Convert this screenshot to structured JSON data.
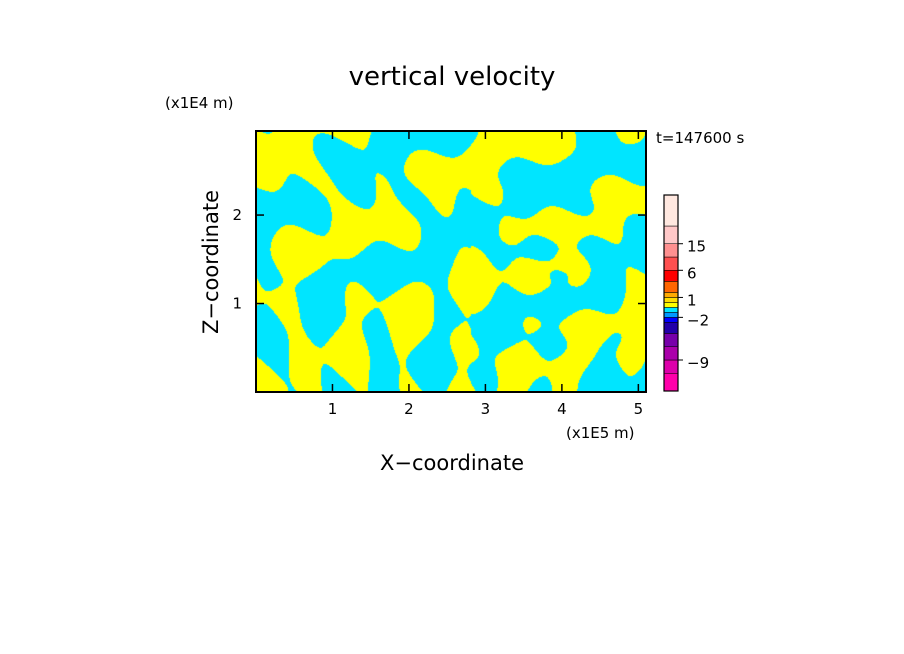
{
  "chart_data": {
    "type": "heatmap",
    "title": "vertical velocity",
    "xlabel": "X−coordinate",
    "ylabel": "Z−coordinate",
    "x_unit": "(x1E5 m)",
    "y_unit": "(x1E4 m)",
    "time_label": "t=147600 s",
    "xlim": [
      0,
      5.1
    ],
    "ylim": [
      0,
      2.95
    ],
    "x_ticks": [
      1,
      2,
      3,
      4,
      5
    ],
    "y_ticks": [
      1,
      2
    ],
    "field_colors": {
      "positive": "#ffff00",
      "negative": "#00e5ff"
    },
    "colorbar": {
      "levels": [
        {
          "color": "#ff00aa"
        },
        {
          "color": "#dd00aa"
        },
        {
          "color": "#aa00aa"
        },
        {
          "color": "#7700aa"
        },
        {
          "color": "#2200aa"
        },
        {
          "color": "#0000ff"
        },
        {
          "color": "#0099ff"
        },
        {
          "color": "#00e5ff"
        },
        {
          "color": "#ffff00"
        },
        {
          "color": "#ffdd00"
        },
        {
          "color": "#ffaa00"
        },
        {
          "color": "#ff6600"
        },
        {
          "color": "#ff0000"
        },
        {
          "color": "#ff5050"
        },
        {
          "color": "#ff9090"
        },
        {
          "color": "#ffc8c8"
        },
        {
          "color": "#ffe8e0"
        }
      ],
      "tick_labels": [
        "−9",
        "−2",
        "1",
        "6",
        "15"
      ]
    }
  }
}
